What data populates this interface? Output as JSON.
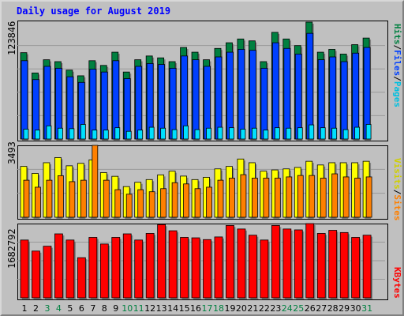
{
  "title": "Daily usage for August 2019",
  "colors": {
    "hits": "#008040",
    "files": "#0040ff",
    "pages": "#00e0ff",
    "visits": "#ffff00",
    "sites": "#ff8000",
    "kbytes": "#ff0000",
    "weekend_day": "#008040",
    "weekday": "#000000",
    "title": "#0000ff"
  },
  "chart_data": [
    {
      "type": "bar",
      "name": "hits-files-pages",
      "y_max_label": "123846",
      "categories": [
        1,
        2,
        3,
        4,
        5,
        6,
        7,
        8,
        9,
        10,
        11,
        12,
        13,
        14,
        15,
        16,
        17,
        18,
        19,
        20,
        21,
        22,
        23,
        24,
        25,
        26,
        27,
        28,
        29,
        30,
        31
      ],
      "series": [
        {
          "name": "Hits",
          "label": "Hits",
          "values": [
            91500,
            70000,
            84000,
            82000,
            73000,
            67000,
            83000,
            78000,
            92000,
            71000,
            84000,
            88000,
            86000,
            82000,
            97000,
            92000,
            84000,
            96000,
            102000,
            106000,
            104000,
            82000,
            113000,
            106000,
            99000,
            123846,
            92000,
            95000,
            90000,
            100000,
            107000
          ]
        },
        {
          "name": "Files",
          "label": "Files",
          "values": [
            83000,
            63000,
            77000,
            75000,
            66000,
            60000,
            74000,
            71000,
            83000,
            64000,
            77000,
            80000,
            79000,
            75000,
            88000,
            84000,
            77000,
            87000,
            92000,
            95000,
            94000,
            75000,
            102000,
            96000,
            90000,
            112000,
            84000,
            87000,
            82000,
            91000,
            97000
          ]
        },
        {
          "name": "Pages",
          "label": "Pages",
          "values": [
            10500,
            9500,
            14000,
            11500,
            11000,
            15500,
            9500,
            9500,
            12000,
            8200,
            9500,
            12500,
            11500,
            10000,
            14000,
            10000,
            11500,
            12500,
            12000,
            10500,
            11500,
            9500,
            12000,
            11500,
            12000,
            15000,
            12000,
            11500,
            10000,
            12500,
            15500
          ]
        }
      ],
      "label_separators": [
        "/",
        "/"
      ]
    },
    {
      "type": "bar",
      "name": "visits-sites",
      "y_max_label": "3493",
      "categories": [
        1,
        2,
        3,
        4,
        5,
        6,
        7,
        8,
        9,
        10,
        11,
        12,
        13,
        14,
        15,
        16,
        17,
        18,
        19,
        20,
        21,
        22,
        23,
        24,
        25,
        26,
        27,
        28,
        29,
        30,
        31
      ],
      "series": [
        {
          "name": "Visits",
          "label": "Visits",
          "values": [
            2470,
            2130,
            2650,
            2900,
            2500,
            2620,
            2790,
            2170,
            1990,
            1490,
            1700,
            1830,
            2060,
            2240,
            2000,
            1830,
            1940,
            2350,
            2470,
            2830,
            2650,
            2240,
            2300,
            2350,
            2420,
            2720,
            2540,
            2650,
            2650,
            2650,
            2720
          ]
        },
        {
          "name": "Sites",
          "label": "Sites",
          "values": [
            1800,
            1460,
            1800,
            2020,
            1730,
            1800,
            3493,
            1800,
            1340,
            1120,
            1340,
            1240,
            1390,
            1680,
            1620,
            1390,
            1460,
            1800,
            1900,
            2070,
            1900,
            1900,
            1900,
            1960,
            2030,
            2030,
            1900,
            2110,
            1960,
            1900,
            1960
          ]
        }
      ],
      "label_separators": [
        "/"
      ]
    },
    {
      "type": "bar",
      "name": "kbytes",
      "y_max_label": "1682792",
      "categories": [
        1,
        2,
        3,
        4,
        5,
        6,
        7,
        8,
        9,
        10,
        11,
        12,
        13,
        14,
        15,
        16,
        17,
        18,
        19,
        20,
        21,
        22,
        23,
        24,
        25,
        26,
        27,
        28,
        29,
        30,
        31
      ],
      "series": [
        {
          "name": "KBytes",
          "label": "KBytes",
          "values": [
            1310000,
            1060000,
            1170000,
            1450000,
            1310000,
            910000,
            1370000,
            1220000,
            1370000,
            1450000,
            1310000,
            1460000,
            1660000,
            1520000,
            1370000,
            1360000,
            1320000,
            1380000,
            1640000,
            1560000,
            1420000,
            1310000,
            1640000,
            1560000,
            1540000,
            1682792,
            1460000,
            1530000,
            1480000,
            1370000,
            1420000
          ]
        }
      ]
    }
  ],
  "weekend_days": [
    3,
    4,
    10,
    11,
    17,
    18,
    24,
    25,
    31
  ]
}
